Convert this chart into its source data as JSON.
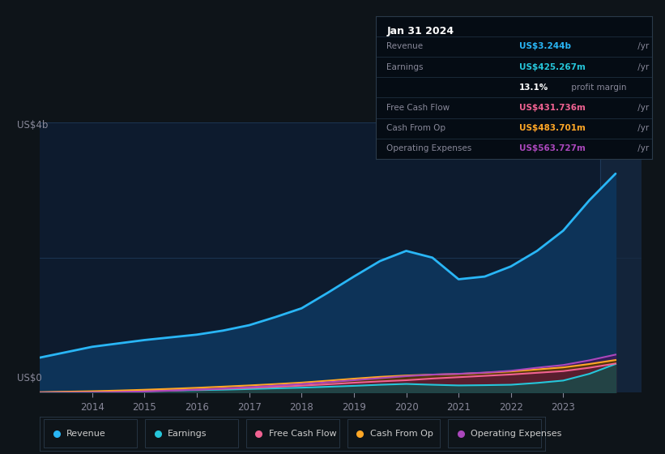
{
  "background_color": "#0e1419",
  "plot_bg_color": "#0d1b2e",
  "years": [
    2013.0,
    2013.5,
    2014.0,
    2014.5,
    2015.0,
    2015.5,
    2016.0,
    2016.5,
    2017.0,
    2017.5,
    2018.0,
    2018.5,
    2019.0,
    2019.5,
    2020.0,
    2020.5,
    2021.0,
    2021.5,
    2022.0,
    2022.5,
    2023.0,
    2023.5,
    2024.0
  ],
  "revenue": [
    0.52,
    0.6,
    0.68,
    0.73,
    0.78,
    0.82,
    0.86,
    0.92,
    1.0,
    1.12,
    1.25,
    1.48,
    1.72,
    1.95,
    2.1,
    2.0,
    1.68,
    1.72,
    1.87,
    2.1,
    2.4,
    2.85,
    3.244
  ],
  "earnings": [
    0.005,
    0.01,
    0.015,
    0.02,
    0.025,
    0.032,
    0.038,
    0.045,
    0.055,
    0.065,
    0.075,
    0.088,
    0.102,
    0.118,
    0.13,
    0.118,
    0.108,
    0.112,
    0.118,
    0.145,
    0.18,
    0.28,
    0.425
  ],
  "free_cash_flow": [
    0.003,
    0.007,
    0.012,
    0.018,
    0.025,
    0.035,
    0.045,
    0.058,
    0.072,
    0.088,
    0.105,
    0.125,
    0.148,
    0.168,
    0.185,
    0.21,
    0.23,
    0.25,
    0.27,
    0.295,
    0.32,
    0.37,
    0.432
  ],
  "cash_from_op": [
    0.008,
    0.015,
    0.022,
    0.032,
    0.044,
    0.058,
    0.073,
    0.09,
    0.108,
    0.128,
    0.15,
    0.178,
    0.208,
    0.235,
    0.255,
    0.268,
    0.278,
    0.295,
    0.315,
    0.345,
    0.375,
    0.425,
    0.484
  ],
  "operating_exp": [
    0.0,
    0.002,
    0.005,
    0.01,
    0.018,
    0.03,
    0.045,
    0.062,
    0.082,
    0.105,
    0.128,
    0.155,
    0.185,
    0.215,
    0.245,
    0.268,
    0.28,
    0.298,
    0.325,
    0.37,
    0.41,
    0.48,
    0.564
  ],
  "revenue_color": "#29b6f6",
  "earnings_color": "#26c6da",
  "fcf_color": "#f06292",
  "cashop_color": "#ffa726",
  "opexp_color": "#ab47bc",
  "revenue_fill": "#0d3358",
  "earnings_fill": "#1a4a4a",
  "fcf_fill": "#5a1a35",
  "cashop_fill": "#5a3a00",
  "opexp_fill": "#3a1a5a",
  "ylabel_text": "US$4b",
  "y0_text": "US$0",
  "title_box": {
    "date": "Jan 31 2024",
    "revenue_label": "Revenue",
    "revenue_value": "US$3.244b",
    "earnings_label": "Earnings",
    "earnings_value": "US$425.267m",
    "margin_text": "13.1%",
    "margin_suffix": " profit margin",
    "fcf_label": "Free Cash Flow",
    "fcf_value": "US$431.736m",
    "cashop_label": "Cash From Op",
    "cashop_value": "US$483.701m",
    "opexp_label": "Operating Expenses",
    "opexp_value": "US$563.727m"
  },
  "legend_items": [
    "Revenue",
    "Earnings",
    "Free Cash Flow",
    "Cash From Op",
    "Operating Expenses"
  ],
  "legend_colors": [
    "#29b6f6",
    "#26c6da",
    "#f06292",
    "#ffa726",
    "#ab47bc"
  ],
  "x_ticks": [
    2014,
    2015,
    2016,
    2017,
    2018,
    2019,
    2020,
    2021,
    2022,
    2023
  ],
  "ylim": [
    0,
    4.0
  ],
  "xlim": [
    2013.0,
    2024.5
  ]
}
